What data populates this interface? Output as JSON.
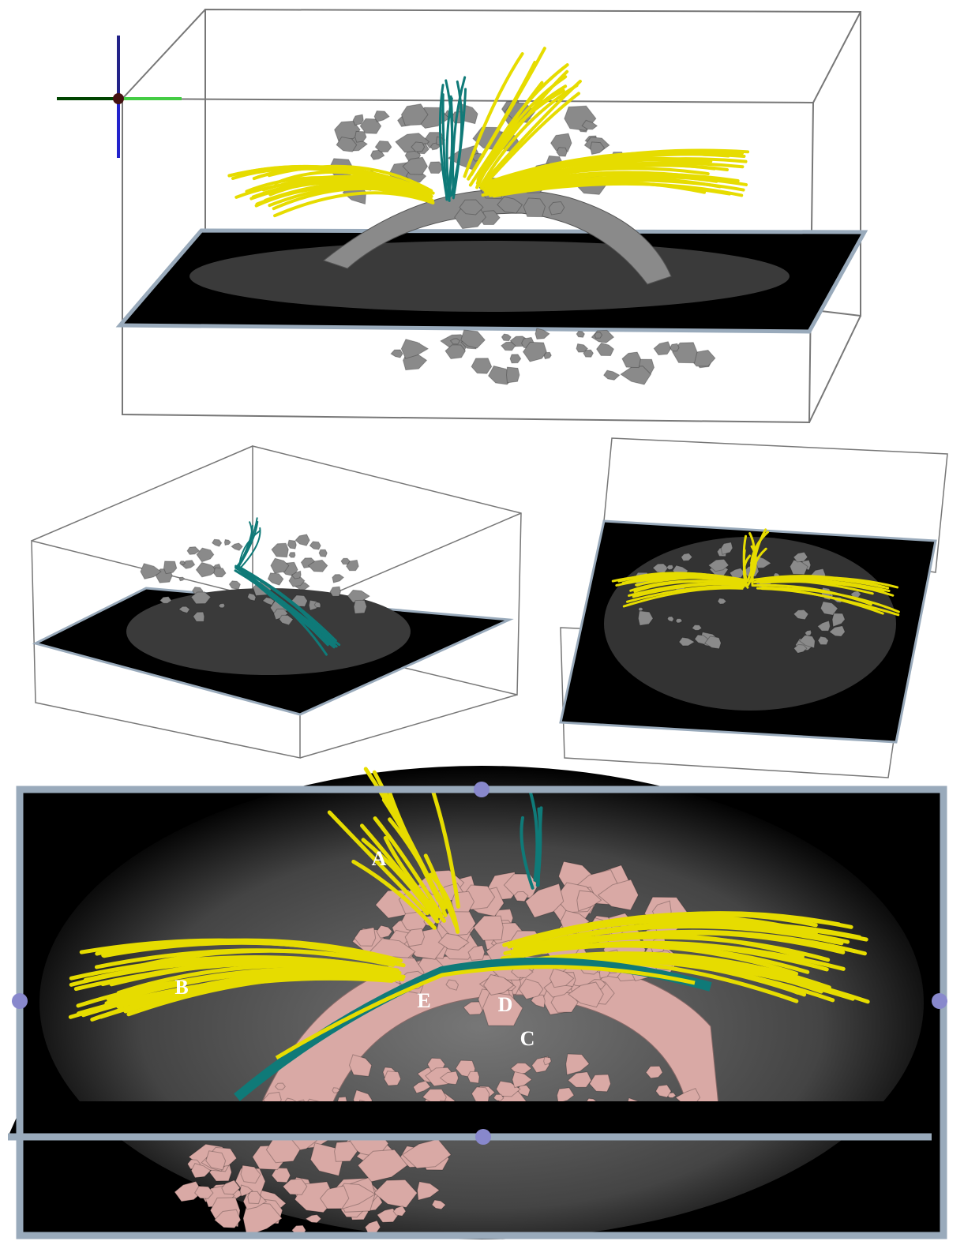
{
  "annotations": [
    "A",
    "B",
    "C",
    "D",
    "E"
  ]
}
